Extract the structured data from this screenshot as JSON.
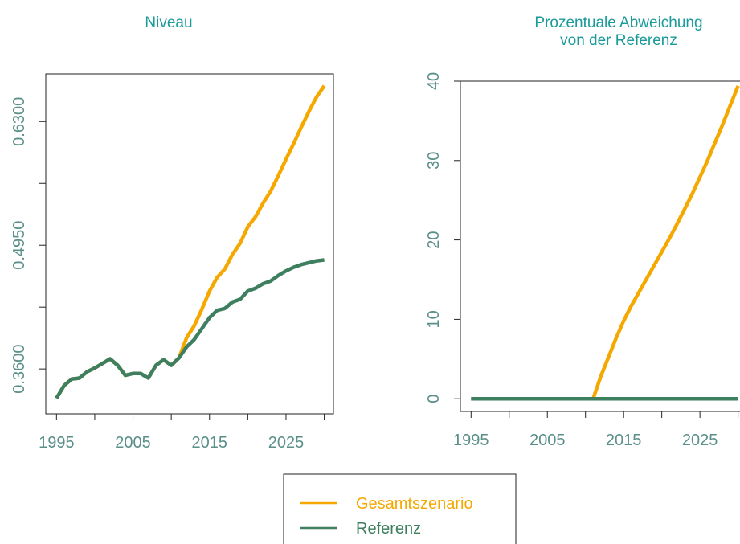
{
  "chart_data": [
    {
      "type": "line",
      "title": "Niveau",
      "x": [
        1995,
        1996,
        1997,
        1998,
        1999,
        2000,
        2001,
        2002,
        2003,
        2004,
        2005,
        2006,
        2007,
        2008,
        2009,
        2010,
        2011,
        2012,
        2013,
        2014,
        2015,
        2016,
        2017,
        2018,
        2019,
        2020,
        2021,
        2022,
        2023,
        2024,
        2025,
        2026,
        2027,
        2028,
        2029,
        2030
      ],
      "series": [
        {
          "name": "Gesamtszenario",
          "color": "#f5a800",
          "values": [
            0.328,
            0.342,
            0.349,
            0.35,
            0.357,
            0.361,
            0.366,
            0.371,
            0.364,
            0.353,
            0.355,
            0.355,
            0.35,
            0.364,
            0.37,
            0.364,
            0.372,
            0.394,
            0.407,
            0.425,
            0.445,
            0.46,
            0.469,
            0.485,
            0.497,
            0.515,
            0.526,
            0.541,
            0.554,
            0.571,
            0.589,
            0.606,
            0.624,
            0.641,
            0.657,
            0.669
          ]
        },
        {
          "name": "Referenz",
          "color": "#3d7f5e",
          "values": [
            0.328,
            0.342,
            0.349,
            0.35,
            0.357,
            0.361,
            0.366,
            0.371,
            0.364,
            0.353,
            0.355,
            0.355,
            0.35,
            0.364,
            0.37,
            0.364,
            0.372,
            0.384,
            0.392,
            0.404,
            0.416,
            0.424,
            0.426,
            0.433,
            0.436,
            0.445,
            0.448,
            0.453,
            0.456,
            0.462,
            0.467,
            0.471,
            0.474,
            0.476,
            0.478,
            0.479
          ]
        }
      ],
      "xlim": [
        1993.6,
        2031.2
      ],
      "xticks": [
        1995,
        2005,
        2015,
        2025
      ],
      "xminor": [
        2000,
        2010,
        2020,
        2030
      ],
      "ylim": [
        0.311,
        0.682
      ],
      "yticks": [
        {
          "value": 0.36,
          "label": "0.3600"
        },
        {
          "value": 0.495,
          "label": "0.4950"
        },
        {
          "value": 0.63,
          "label": "0.6300"
        }
      ],
      "yminor": [
        0.4275,
        0.5625
      ],
      "legend": "bottom"
    },
    {
      "type": "line",
      "title": "Prozentuale Abweichung\nvon der Referenz",
      "x": [
        1995,
        1996,
        1997,
        1998,
        1999,
        2000,
        2001,
        2002,
        2003,
        2004,
        2005,
        2006,
        2007,
        2008,
        2009,
        2010,
        2011,
        2012,
        2013,
        2014,
        2015,
        2016,
        2017,
        2018,
        2019,
        2020,
        2021,
        2022,
        2023,
        2024,
        2025,
        2026,
        2027,
        2028,
        2029,
        2030
      ],
      "series": [
        {
          "name": "Gesamtszenario",
          "color": "#f5a800",
          "values": [
            0,
            0,
            0,
            0,
            0,
            0,
            0,
            0,
            0,
            0,
            0,
            0,
            0,
            0,
            0,
            0,
            0,
            2.8,
            5.2,
            7.6,
            9.8,
            11.7,
            13.4,
            15.1,
            16.8,
            18.5,
            20.2,
            22.0,
            23.9,
            25.8,
            27.9,
            30.0,
            32.3,
            34.6,
            37.0,
            39.4
          ]
        },
        {
          "name": "Referenz",
          "color": "#3d7f5e",
          "values": [
            0,
            0,
            0,
            0,
            0,
            0,
            0,
            0,
            0,
            0,
            0,
            0,
            0,
            0,
            0,
            0,
            0,
            0,
            0,
            0,
            0,
            0,
            0,
            0,
            0,
            0,
            0,
            0,
            0,
            0,
            0,
            0,
            0,
            0,
            0,
            0
          ]
        }
      ],
      "xlim": [
        1993.6,
        2031.2
      ],
      "xticks": [
        1995,
        2005,
        2015,
        2025
      ],
      "xminor": [
        2000,
        2010,
        2020,
        2030
      ],
      "ylim": [
        -1.6,
        40
      ],
      "yticks": [
        0,
        10,
        20,
        30,
        40
      ]
    }
  ]
}
